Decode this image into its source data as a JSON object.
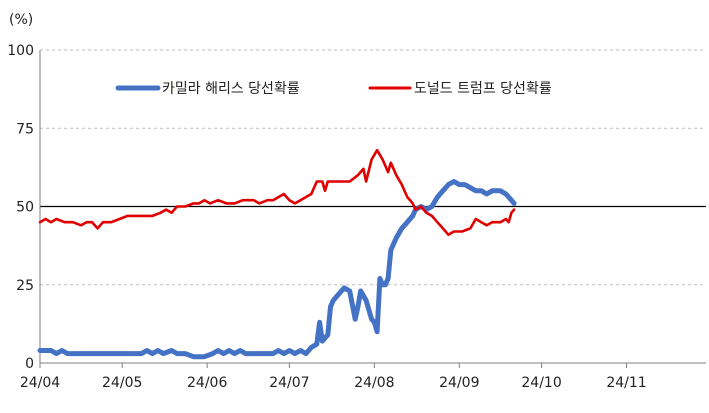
{
  "chart_data": {
    "type": "line",
    "unit_label": "(%)",
    "ylim": [
      0,
      100
    ],
    "yticks": [
      0,
      25,
      50,
      75,
      100
    ],
    "xlim": [
      "2024-04-01",
      "2024-11-30"
    ],
    "xticks": [
      {
        "date": "2024-04-01",
        "label": "24/04"
      },
      {
        "date": "2024-05-01",
        "label": "24/05"
      },
      {
        "date": "2024-06-01",
        "label": "24/06"
      },
      {
        "date": "2024-07-01",
        "label": "24/07"
      },
      {
        "date": "2024-08-01",
        "label": "24/08"
      },
      {
        "date": "2024-09-01",
        "label": "24/09"
      },
      {
        "date": "2024-10-01",
        "label": "24/10"
      },
      {
        "date": "2024-11-01",
        "label": "24/11"
      }
    ],
    "grid": {
      "horizontal": true,
      "style": "dashed"
    },
    "reference_line": 50,
    "legend_position": "top",
    "series": [
      {
        "name": "카밀라 해리스 당선확률",
        "color": "#4472C4",
        "points": [
          [
            "2024-04-01",
            4
          ],
          [
            "2024-04-05",
            4
          ],
          [
            "2024-04-07",
            3
          ],
          [
            "2024-04-09",
            4
          ],
          [
            "2024-04-11",
            3
          ],
          [
            "2024-04-20",
            3
          ],
          [
            "2024-04-30",
            3
          ],
          [
            "2024-05-08",
            3
          ],
          [
            "2024-05-10",
            4
          ],
          [
            "2024-05-12",
            3
          ],
          [
            "2024-05-14",
            4
          ],
          [
            "2024-05-16",
            3
          ],
          [
            "2024-05-19",
            4
          ],
          [
            "2024-05-21",
            3
          ],
          [
            "2024-05-24",
            3
          ],
          [
            "2024-05-27",
            2
          ],
          [
            "2024-05-31",
            2
          ],
          [
            "2024-06-03",
            3
          ],
          [
            "2024-06-05",
            4
          ],
          [
            "2024-06-07",
            3
          ],
          [
            "2024-06-09",
            4
          ],
          [
            "2024-06-11",
            3
          ],
          [
            "2024-06-13",
            4
          ],
          [
            "2024-06-15",
            3
          ],
          [
            "2024-06-20",
            3
          ],
          [
            "2024-06-25",
            3
          ],
          [
            "2024-06-27",
            4
          ],
          [
            "2024-06-29",
            3
          ],
          [
            "2024-07-01",
            4
          ],
          [
            "2024-07-03",
            3
          ],
          [
            "2024-07-05",
            4
          ],
          [
            "2024-07-07",
            3
          ],
          [
            "2024-07-09",
            5
          ],
          [
            "2024-07-11",
            6
          ],
          [
            "2024-07-12",
            13
          ],
          [
            "2024-07-13",
            7
          ],
          [
            "2024-07-14",
            8
          ],
          [
            "2024-07-15",
            9
          ],
          [
            "2024-07-16",
            18
          ],
          [
            "2024-07-17",
            20
          ],
          [
            "2024-07-19",
            22
          ],
          [
            "2024-07-21",
            24
          ],
          [
            "2024-07-23",
            23
          ],
          [
            "2024-07-25",
            14
          ],
          [
            "2024-07-26",
            18
          ],
          [
            "2024-07-27",
            23
          ],
          [
            "2024-07-29",
            20
          ],
          [
            "2024-07-31",
            14
          ],
          [
            "2024-08-01",
            13
          ],
          [
            "2024-08-02",
            10
          ],
          [
            "2024-08-03",
            27
          ],
          [
            "2024-08-04",
            25
          ],
          [
            "2024-08-05",
            25
          ],
          [
            "2024-08-06",
            27
          ],
          [
            "2024-08-07",
            36
          ],
          [
            "2024-08-09",
            40
          ],
          [
            "2024-08-11",
            43
          ],
          [
            "2024-08-13",
            45
          ],
          [
            "2024-08-15",
            47
          ],
          [
            "2024-08-16",
            49
          ],
          [
            "2024-08-18",
            50
          ],
          [
            "2024-08-20",
            49
          ],
          [
            "2024-08-22",
            50
          ],
          [
            "2024-08-24",
            53
          ],
          [
            "2024-08-26",
            55
          ],
          [
            "2024-08-28",
            57
          ],
          [
            "2024-08-30",
            58
          ],
          [
            "2024-09-01",
            57
          ],
          [
            "2024-09-03",
            57
          ],
          [
            "2024-09-05",
            56
          ],
          [
            "2024-09-07",
            55
          ],
          [
            "2024-09-09",
            55
          ],
          [
            "2024-09-11",
            54
          ],
          [
            "2024-09-13",
            55
          ],
          [
            "2024-09-16",
            55
          ],
          [
            "2024-09-18",
            54
          ],
          [
            "2024-09-20",
            52
          ],
          [
            "2024-09-21",
            51
          ]
        ]
      },
      {
        "name": "도널드 트럼프 당선확률",
        "color": "#E00000",
        "points": [
          [
            "2024-04-01",
            45
          ],
          [
            "2024-04-03",
            46
          ],
          [
            "2024-04-05",
            45
          ],
          [
            "2024-04-07",
            46
          ],
          [
            "2024-04-10",
            45
          ],
          [
            "2024-04-13",
            45
          ],
          [
            "2024-04-16",
            44
          ],
          [
            "2024-04-18",
            45
          ],
          [
            "2024-04-20",
            45
          ],
          [
            "2024-04-22",
            43
          ],
          [
            "2024-04-24",
            45
          ],
          [
            "2024-04-27",
            45
          ],
          [
            "2024-04-30",
            46
          ],
          [
            "2024-05-03",
            47
          ],
          [
            "2024-05-08",
            47
          ],
          [
            "2024-05-12",
            47
          ],
          [
            "2024-05-15",
            48
          ],
          [
            "2024-05-17",
            49
          ],
          [
            "2024-05-19",
            48
          ],
          [
            "2024-05-21",
            50
          ],
          [
            "2024-05-24",
            50
          ],
          [
            "2024-05-27",
            51
          ],
          [
            "2024-05-29",
            51
          ],
          [
            "2024-05-31",
            52
          ],
          [
            "2024-06-02",
            51
          ],
          [
            "2024-06-05",
            52
          ],
          [
            "2024-06-08",
            51
          ],
          [
            "2024-06-11",
            51
          ],
          [
            "2024-06-14",
            52
          ],
          [
            "2024-06-18",
            52
          ],
          [
            "2024-06-20",
            51
          ],
          [
            "2024-06-23",
            52
          ],
          [
            "2024-06-25",
            52
          ],
          [
            "2024-06-27",
            53
          ],
          [
            "2024-06-29",
            54
          ],
          [
            "2024-07-01",
            52
          ],
          [
            "2024-07-03",
            51
          ],
          [
            "2024-07-05",
            52
          ],
          [
            "2024-07-07",
            53
          ],
          [
            "2024-07-09",
            54
          ],
          [
            "2024-07-11",
            58
          ],
          [
            "2024-07-13",
            58
          ],
          [
            "2024-07-14",
            55
          ],
          [
            "2024-07-15",
            58
          ],
          [
            "2024-07-19",
            58
          ],
          [
            "2024-07-23",
            58
          ],
          [
            "2024-07-26",
            60
          ],
          [
            "2024-07-28",
            62
          ],
          [
            "2024-07-29",
            58
          ],
          [
            "2024-07-31",
            65
          ],
          [
            "2024-08-02",
            68
          ],
          [
            "2024-08-04",
            65
          ],
          [
            "2024-08-06",
            61
          ],
          [
            "2024-08-07",
            64
          ],
          [
            "2024-08-09",
            60
          ],
          [
            "2024-08-11",
            57
          ],
          [
            "2024-08-13",
            53
          ],
          [
            "2024-08-15",
            51
          ],
          [
            "2024-08-16",
            49
          ],
          [
            "2024-08-18",
            50
          ],
          [
            "2024-08-20",
            48
          ],
          [
            "2024-08-22",
            47
          ],
          [
            "2024-08-24",
            45
          ],
          [
            "2024-08-26",
            43
          ],
          [
            "2024-08-28",
            41
          ],
          [
            "2024-08-30",
            42
          ],
          [
            "2024-09-02",
            42
          ],
          [
            "2024-09-05",
            43
          ],
          [
            "2024-09-07",
            46
          ],
          [
            "2024-09-09",
            45
          ],
          [
            "2024-09-11",
            44
          ],
          [
            "2024-09-13",
            45
          ],
          [
            "2024-09-16",
            45
          ],
          [
            "2024-09-18",
            46
          ],
          [
            "2024-09-19",
            45
          ],
          [
            "2024-09-20",
            48
          ],
          [
            "2024-09-21",
            49
          ]
        ]
      }
    ]
  }
}
